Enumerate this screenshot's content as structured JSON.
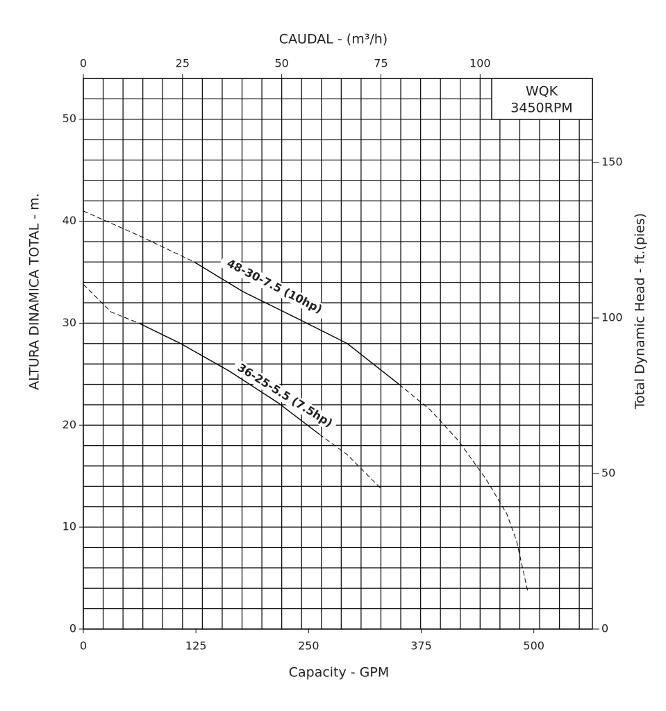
{
  "chart_data": {
    "type": "line",
    "x_label": "Capacity - GPM",
    "x2_label": "CAUDAL - (m³/h)",
    "y_label": "ALTURA DINAMICA TOTAL - m.",
    "y2_label": "Total Dynamic Head - ft.(pies)",
    "annotation": [
      "WQK",
      "3450RPM"
    ],
    "xlim": [
      0,
      565
    ],
    "xticks": [
      0,
      125,
      250,
      375,
      500
    ],
    "x2lim": [
      0,
      128.3
    ],
    "x2ticks": [
      0,
      25,
      50,
      75,
      100
    ],
    "x2_grid_step": 5,
    "ylim": [
      0,
      54
    ],
    "yticks": [
      0,
      10,
      20,
      30,
      40,
      50
    ],
    "y_grid_step": 2,
    "y2lim": [
      0,
      177
    ],
    "y2ticks": [
      0,
      50,
      100,
      150
    ],
    "grid": true,
    "series": [
      {
        "name": "48-30-7.5 (10hp)",
        "color": "#000000",
        "segments": [
          {
            "style": "dashed",
            "x": [
              0,
              61.6,
              123
            ],
            "values": [
              41.0,
              38.6,
              36.0
            ]
          },
          {
            "style": "solid",
            "x": [
              123,
              177,
              239,
              293,
              350.5
            ],
            "values": [
              36.0,
              33.1,
              30.4,
              28.0,
              24.0
            ]
          },
          {
            "style": "dashed",
            "x": [
              350.5,
              385,
              416,
              447,
              470,
              481,
              493
            ],
            "values": [
              24.0,
              21.5,
              18.5,
              14.7,
              11.3,
              8.6,
              3.8
            ]
          }
        ]
      },
      {
        "name": "36-25-5.5 (7.5hp)",
        "color": "#000000",
        "segments": [
          {
            "style": "dashed",
            "x": [
              0,
              30.8,
              61.6
            ],
            "values": [
              33.8,
              31.1,
              30.0
            ]
          },
          {
            "style": "solid",
            "x": [
              61.6,
              108,
              162,
              216,
              262
            ],
            "values": [
              30.0,
              28.0,
              25.3,
              22.2,
              19.1
            ]
          },
          {
            "style": "dashed",
            "x": [
              262,
              293,
              330
            ],
            "values": [
              19.1,
              17.1,
              13.8
            ]
          }
        ]
      }
    ]
  }
}
